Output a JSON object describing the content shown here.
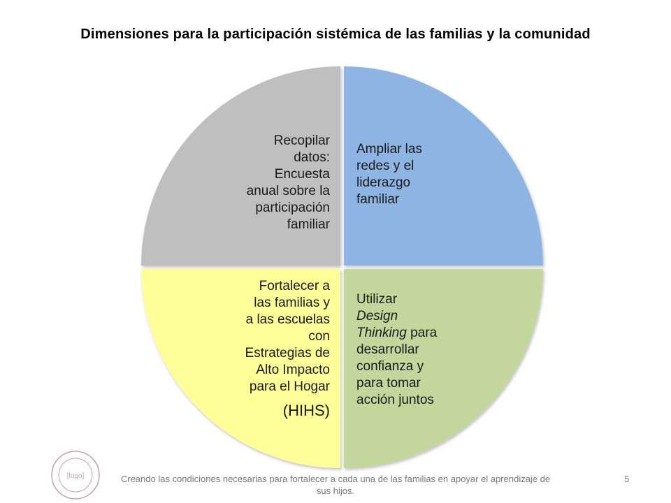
{
  "title": "Dimensiones para la participación sistémica de las familias y la comunidad",
  "quadrants": [
    {
      "id": "top-left",
      "color": "#bfbfbf",
      "lines": [
        "Recopilar",
        "datos:",
        "Encuesta",
        "anual sobre la",
        "participación",
        "familiar"
      ]
    },
    {
      "id": "top-right",
      "color": "#8eb4e3",
      "lines": [
        "Ampliar las",
        "redes y el",
        "liderazgo",
        "familiar"
      ]
    },
    {
      "id": "bottom-left",
      "color": "#ffff99",
      "lines": [
        "Fortalecer a",
        "las familias y",
        "a las escuelas",
        "con",
        "Estrategias de",
        "Alto Impacto",
        "para el Hogar"
      ],
      "acronym": "(HIHS)"
    },
    {
      "id": "bottom-right",
      "color": "#c3d69b",
      "line1": "Utilizar",
      "line2": "Design",
      "line3_italic": "Thinking",
      "line3_rest": " para",
      "line4": "desarrollar",
      "line5": "confianza y",
      "line6": "para tomar",
      "line7": "acción juntos"
    }
  ],
  "footer": {
    "text_line1": "Creando las condiciones necesarias para fortalecer a cada una de las familias en apoyar el aprendizaje de",
    "text_line2": "sus hijos.",
    "page_number": "5"
  },
  "logo": {
    "text": "[logo]",
    "color": "#c6a3a3"
  },
  "colors": {
    "divider": "#ffffff",
    "footer_text": "#7a7a7a"
  }
}
